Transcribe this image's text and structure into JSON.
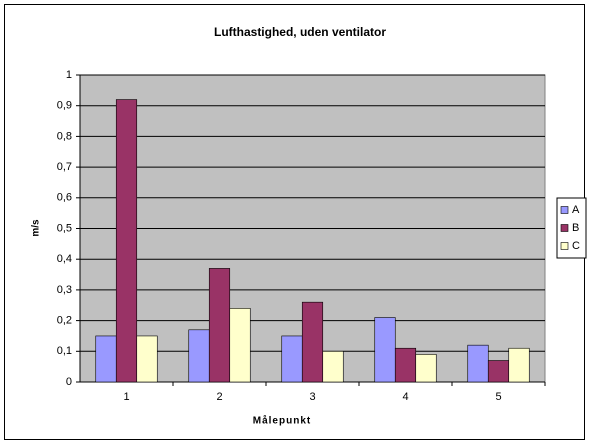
{
  "chart_data": {
    "type": "bar",
    "title": "Lufthastighed, uden ventilator",
    "x_label": "Målepunkt",
    "y_label": "m/s",
    "categories": [
      "1",
      "2",
      "3",
      "4",
      "5"
    ],
    "series": [
      {
        "name": "A",
        "color": "#9999ff",
        "values": [
          0.15,
          0.17,
          0.15,
          0.21,
          0.12
        ]
      },
      {
        "name": "B",
        "color": "#993366",
        "values": [
          0.92,
          0.37,
          0.26,
          0.11,
          0.07
        ]
      },
      {
        "name": "C",
        "color": "#ffffcc",
        "values": [
          0.15,
          0.24,
          0.1,
          0.09,
          0.11
        ]
      }
    ],
    "ylim": [
      0,
      1
    ],
    "yticks": [
      0,
      {
        "value": 0.1,
        "label": "0,1"
      },
      {
        "value": 0.2,
        "label": "0,2"
      },
      {
        "value": 0.3,
        "label": "0,3"
      },
      {
        "value": 0.4,
        "label": "0,4"
      },
      {
        "value": 0.5,
        "label": "0,5"
      },
      {
        "value": 0.6,
        "label": "0,6"
      },
      {
        "value": 0.7,
        "label": "0,7"
      },
      {
        "value": 0.8,
        "label": "0,8"
      },
      {
        "value": 0.9,
        "label": "0,9"
      },
      1
    ],
    "grid": true,
    "legend": "right"
  }
}
